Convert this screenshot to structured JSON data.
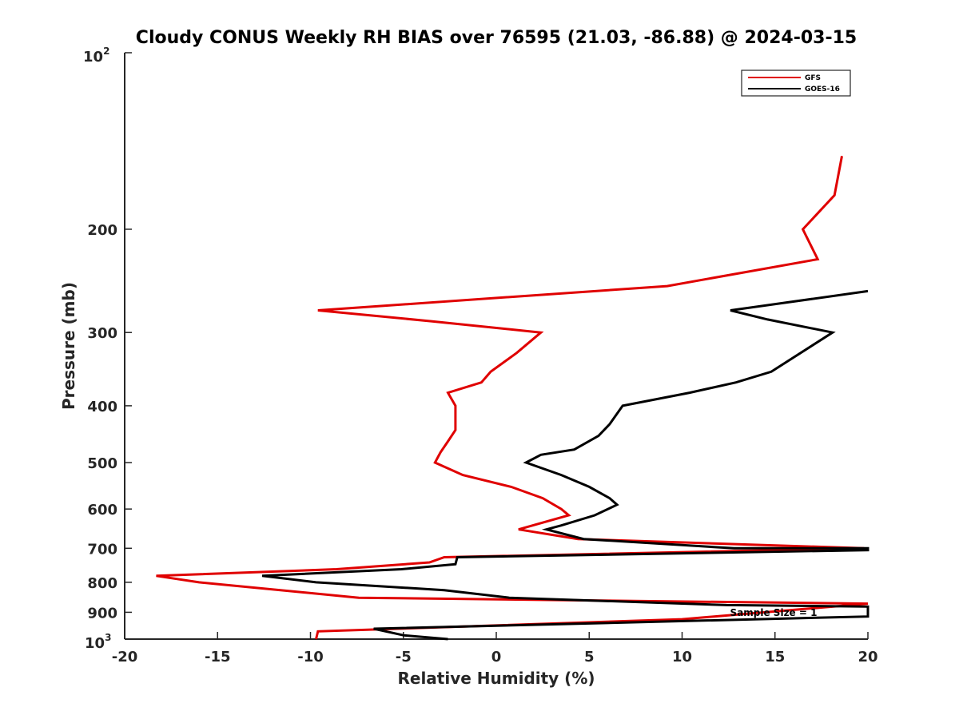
{
  "chart_data": {
    "type": "line",
    "title": "Cloudy CONUS Weekly RH BIAS over 76595 (21.03, -86.88) @ 2024-03-15",
    "xlabel": "Relative Humidity (%)",
    "ylabel": "Pressure (mb)",
    "xlim": [
      -20,
      20
    ],
    "ylim": [
      100,
      1000
    ],
    "y_scale": "log",
    "y_reversed": true,
    "grid": false,
    "x_ticks": [
      -20,
      -15,
      -10,
      -5,
      0,
      5,
      10,
      15,
      20
    ],
    "y_ticks": [
      100,
      200,
      300,
      400,
      500,
      600,
      700,
      800,
      900,
      1000
    ],
    "y_tick_labels": [
      "200",
      "300",
      "400",
      "500",
      "600",
      "700",
      "800",
      "900"
    ],
    "y_top_label": {
      "base": "10",
      "exp": "2"
    },
    "y_bottom_label": {
      "base": "10",
      "exp": "3"
    },
    "legend_position": "top-right",
    "series": [
      {
        "name": "GFS",
        "color": "#e00000",
        "points": [
          [
            18.6,
            150
          ],
          [
            18.2,
            175
          ],
          [
            16.5,
            200
          ],
          [
            17.3,
            225
          ],
          [
            9.2,
            250
          ],
          [
            -9.6,
            275
          ],
          [
            -3.5,
            287
          ],
          [
            2.4,
            300
          ],
          [
            1.1,
            325
          ],
          [
            -0.3,
            350
          ],
          [
            -0.8,
            365
          ],
          [
            -2.6,
            380
          ],
          [
            -2.2,
            400
          ],
          [
            -2.2,
            440
          ],
          [
            -2.6,
            460
          ],
          [
            -3.0,
            480
          ],
          [
            -3.3,
            500
          ],
          [
            -1.8,
            525
          ],
          [
            0.8,
            550
          ],
          [
            2.5,
            575
          ],
          [
            3.5,
            600
          ],
          [
            3.9,
            615
          ],
          [
            1.2,
            650
          ],
          [
            4.4,
            675
          ],
          [
            19.8,
            700
          ],
          [
            -2.8,
            725
          ],
          [
            -3.6,
            740
          ],
          [
            -8.6,
            760
          ],
          [
            -18.3,
            780
          ],
          [
            -16.0,
            800
          ],
          [
            -7.4,
            850
          ],
          [
            20.0,
            870
          ],
          [
            10.0,
            925
          ],
          [
            -9.6,
            970
          ],
          [
            -9.7,
            1000
          ]
        ]
      },
      {
        "name": "GOES-16",
        "color": "#000000",
        "points": [
          [
            20.0,
            255
          ],
          [
            12.6,
            275
          ],
          [
            14.6,
            285
          ],
          [
            18.1,
            300
          ],
          [
            14.8,
            350
          ],
          [
            12.9,
            365
          ],
          [
            10.4,
            380
          ],
          [
            6.8,
            400
          ],
          [
            6.1,
            430
          ],
          [
            5.5,
            450
          ],
          [
            4.2,
            475
          ],
          [
            2.4,
            485
          ],
          [
            1.6,
            500
          ],
          [
            3.5,
            525
          ],
          [
            5.0,
            550
          ],
          [
            6.1,
            575
          ],
          [
            6.5,
            590
          ],
          [
            5.3,
            615
          ],
          [
            3.5,
            640
          ],
          [
            2.7,
            650
          ],
          [
            4.7,
            675
          ],
          [
            12.8,
            700
          ],
          [
            20.0,
            700
          ],
          [
            20.0,
            705
          ],
          [
            -2.1,
            725
          ],
          [
            -2.2,
            745
          ],
          [
            -5.1,
            760
          ],
          [
            -12.6,
            780
          ],
          [
            -9.7,
            800
          ],
          [
            -2.8,
            825
          ],
          [
            0.7,
            850
          ],
          [
            12.4,
            875
          ],
          [
            20.0,
            880
          ],
          [
            20.0,
            915
          ],
          [
            -6.6,
            960
          ],
          [
            -5.0,
            985
          ],
          [
            -2.6,
            1000
          ]
        ]
      }
    ],
    "annotation": "Sample Size = 1"
  }
}
